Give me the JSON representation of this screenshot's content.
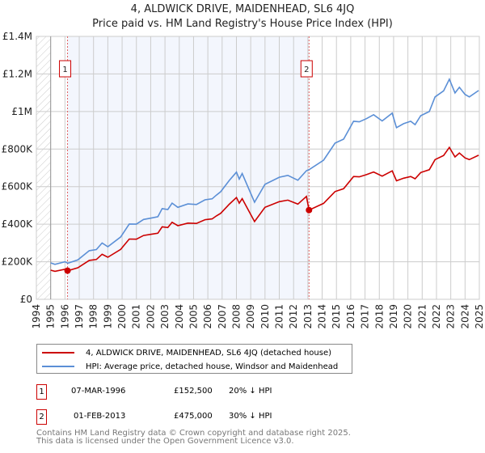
{
  "title_line1": "4, ALDWICK DRIVE, MAIDENHEAD, SL6 4JQ",
  "title_line2": "Price paid vs. HM Land Registry's House Price Index (HPI)",
  "colors": {
    "property": "#cc0000",
    "hpi": "#5b8fd6",
    "shade": "#f3f6fd",
    "grid": "#cccccc"
  },
  "chart_data": {
    "type": "line",
    "title": "Price paid vs. HM Land Registry's House Price Index (HPI)",
    "xlim": [
      1994,
      2025
    ],
    "ylim": [
      0,
      1400000
    ],
    "x_ticks": [
      "1994",
      "1995",
      "1996",
      "1997",
      "1998",
      "1999",
      "2000",
      "2001",
      "2002",
      "2003",
      "2004",
      "2005",
      "2006",
      "2007",
      "2008",
      "2009",
      "2010",
      "2011",
      "2012",
      "2013",
      "2014",
      "2015",
      "2016",
      "2017",
      "2018",
      "2019",
      "2020",
      "2021",
      "2022",
      "2023",
      "2024",
      "2025"
    ],
    "y_ticks": [
      {
        "v": 0,
        "label": "£0"
      },
      {
        "v": 200000,
        "label": "£200K"
      },
      {
        "v": 400000,
        "label": "£400K"
      },
      {
        "v": 600000,
        "label": "£600K"
      },
      {
        "v": 800000,
        "label": "£800K"
      },
      {
        "v": 1000000,
        "label": "£1M"
      },
      {
        "v": 1200000,
        "label": "£1.2M"
      },
      {
        "v": 1400000,
        "label": "£1.4M"
      }
    ],
    "grid": true,
    "shaded_period": [
      1996.18,
      2013.08
    ],
    "series": [
      {
        "name": "hpi",
        "x": [
          1995.0,
          1995.3,
          1996.0,
          1996.2,
          1996.9,
          1997.7,
          1998.2,
          1998.6,
          1999.0,
          1999.9,
          2000.5,
          2001.0,
          2001.5,
          2002.0,
          2002.5,
          2002.8,
          2003.2,
          2003.5,
          2003.9,
          2004.6,
          2005.2,
          2005.8,
          2006.3,
          2006.6,
          2006.9,
          2007.5,
          2008.0,
          2008.2,
          2008.4,
          2009.27,
          2010.0,
          2011.0,
          2011.6,
          2012.3,
          2012.9,
          2013.08,
          2014.1,
          2014.9,
          2015.5,
          2016.2,
          2016.6,
          2017.1,
          2017.6,
          2018.2,
          2018.9,
          2019.2,
          2019.7,
          2020.2,
          2020.5,
          2020.9,
          2021.5,
          2021.9,
          2022.5,
          2022.9,
          2023.3,
          2023.6,
          2024.0,
          2024.3,
          2024.95
        ],
        "y": [
          194000,
          186000,
          200000,
          192000,
          210000,
          259000,
          265000,
          300000,
          280000,
          332000,
          401000,
          400000,
          425000,
          432000,
          440000,
          483000,
          478000,
          512000,
          490000,
          508000,
          505000,
          530000,
          535000,
          555000,
          573000,
          633000,
          677000,
          640000,
          670000,
          517000,
          612000,
          650000,
          660000,
          634000,
          685000,
          690000,
          741000,
          832000,
          853000,
          948000,
          945000,
          962000,
          983000,
          950000,
          991000,
          914000,
          935000,
          948000,
          930000,
          978000,
          1000000,
          1078000,
          1110000,
          1172000,
          1099000,
          1129000,
          1091000,
          1078000,
          1112000
        ]
      },
      {
        "name": "property",
        "x": [
          1995.0,
          1995.3,
          1996.0,
          1996.2,
          1996.9,
          1997.7,
          1998.2,
          1998.6,
          1999.0,
          1999.9,
          2000.5,
          2001.0,
          2001.5,
          2002.0,
          2002.5,
          2002.8,
          2003.2,
          2003.5,
          2003.9,
          2004.6,
          2005.2,
          2005.8,
          2006.3,
          2006.6,
          2006.9,
          2007.5,
          2008.0,
          2008.2,
          2008.4,
          2009.27,
          2010.0,
          2011.0,
          2011.6,
          2012.3,
          2012.9,
          2013.08,
          2014.1,
          2014.9,
          2015.5,
          2016.2,
          2016.6,
          2017.1,
          2017.6,
          2018.2,
          2018.9,
          2019.2,
          2019.7,
          2020.2,
          2020.5,
          2020.9,
          2021.5,
          2021.9,
          2022.5,
          2022.9,
          2023.3,
          2023.6,
          2024.0,
          2024.3,
          2024.95
        ],
        "y": [
          155000,
          149000,
          160000,
          152500,
          168000,
          207000,
          212000,
          240000,
          224000,
          266000,
          321000,
          320000,
          340000,
          346000,
          352000,
          386000,
          382000,
          410000,
          392000,
          406000,
          404000,
          424000,
          428000,
          444000,
          458000,
          506000,
          542000,
          512000,
          536000,
          414000,
          490000,
          520000,
          528000,
          507000,
          548000,
          475000,
          511000,
          574000,
          589000,
          654000,
          652000,
          664000,
          678000,
          656000,
          684000,
          631000,
          645000,
          654000,
          642000,
          675000,
          690000,
          744000,
          766000,
          809000,
          758000,
          779000,
          753000,
          744000,
          767000
        ]
      }
    ],
    "sales": [
      {
        "label": "1",
        "x": 1996.18,
        "y": 152500
      },
      {
        "label": "2",
        "x": 2013.08,
        "y": 475000
      }
    ]
  },
  "legend": {
    "property": "4, ALDWICK DRIVE, MAIDENHEAD, SL6 4JQ (detached house)",
    "hpi": "HPI: Average price, detached house, Windsor and Maidenhead"
  },
  "transactions": [
    {
      "num": "1",
      "date": "07-MAR-1996",
      "price": "£152,500",
      "delta": "20% ↓ HPI"
    },
    {
      "num": "2",
      "date": "01-FEB-2013",
      "price": "£475,000",
      "delta": "30% ↓ HPI"
    }
  ],
  "footer": {
    "line1": "Contains HM Land Registry data © Crown copyright and database right 2025.",
    "line2": "This data is licensed under the Open Government Licence v3.0."
  }
}
